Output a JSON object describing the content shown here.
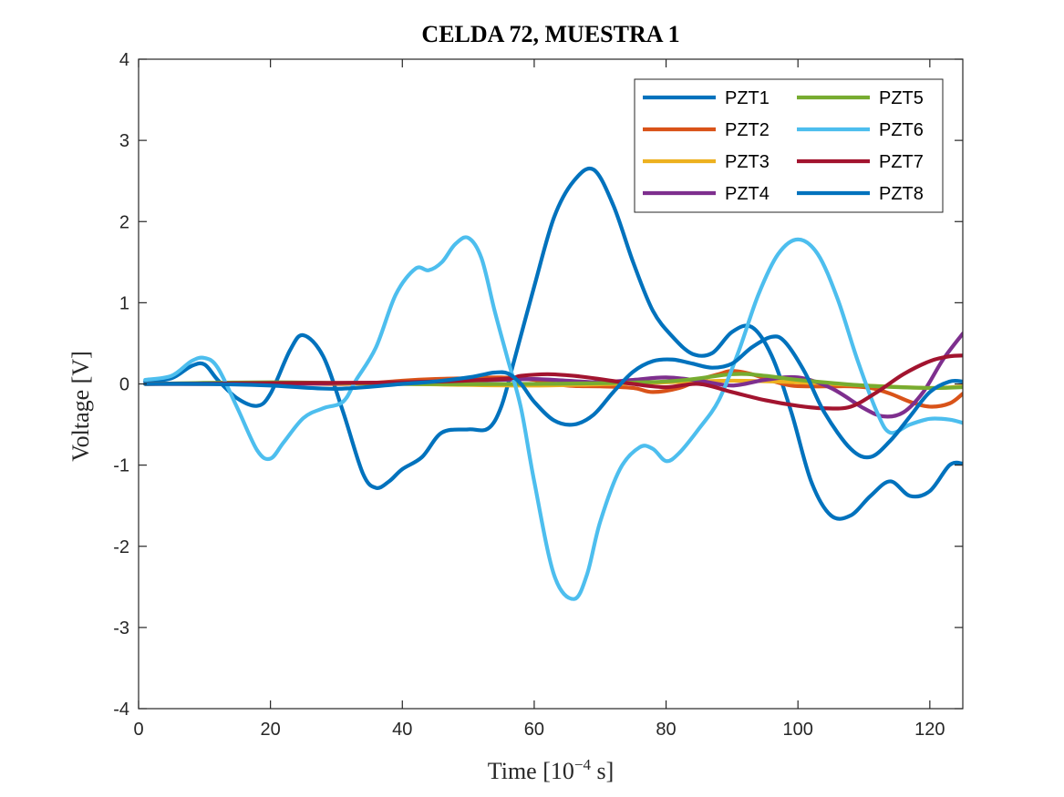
{
  "chart_data": {
    "type": "line",
    "title": "CELDA 72, MUESTRA 1",
    "xlabel": "Time [10",
    "xlabel_exponent": "−4",
    "xlabel_suffix": " s]",
    "ylabel": "Voltage [V]",
    "xlim": [
      0,
      125
    ],
    "ylim": [
      -4,
      4
    ],
    "xticks": [
      0,
      20,
      40,
      60,
      80,
      100,
      120
    ],
    "xtick_labels": [
      "0",
      "20",
      "40",
      "60",
      "80",
      "100",
      "120"
    ],
    "yticks": [
      -4,
      -3,
      -2,
      -1,
      0,
      1,
      2,
      3,
      4
    ],
    "ytick_labels": [
      "-4",
      "-3",
      "-2",
      "-1",
      "0",
      "1",
      "2",
      "3",
      "4"
    ],
    "grid": false,
    "legend_position": "top-right",
    "legend_columns": 2,
    "series": [
      {
        "name": "PZT1",
        "color": "#0072BD",
        "x": [
          1,
          5,
          8,
          10,
          12,
          15,
          18,
          20,
          23,
          25,
          28,
          31,
          34,
          36,
          38,
          40,
          43,
          46,
          50,
          53,
          55,
          57,
          60,
          63,
          66,
          69,
          72,
          75,
          78,
          81,
          84,
          87,
          90,
          93,
          96,
          99,
          102,
          105,
          108,
          111,
          114,
          117,
          120,
          123,
          125
        ],
        "y": [
          0.03,
          0.07,
          0.22,
          0.24,
          0.05,
          -0.18,
          -0.27,
          -0.12,
          0.42,
          0.6,
          0.34,
          -0.34,
          -1.1,
          -1.28,
          -1.2,
          -1.05,
          -0.9,
          -0.6,
          -0.56,
          -0.55,
          -0.28,
          0.3,
          1.2,
          2.05,
          2.5,
          2.64,
          2.2,
          1.5,
          0.9,
          0.58,
          0.37,
          0.38,
          0.64,
          0.7,
          0.35,
          -0.35,
          -1.2,
          -1.62,
          -1.62,
          -1.38,
          -1.2,
          -1.38,
          -1.32,
          -1.0,
          -0.98
        ]
      },
      {
        "name": "PZT2",
        "color": "#D95319",
        "x": [
          1,
          10,
          20,
          30,
          35,
          40,
          45,
          50,
          55,
          60,
          65,
          70,
          75,
          78,
          82,
          85,
          88,
          90,
          93,
          96,
          99,
          102,
          105,
          108,
          111,
          114,
          117,
          120,
          123,
          125
        ],
        "y": [
          0.0,
          0.0,
          0.01,
          0.0,
          0.01,
          0.04,
          0.06,
          0.07,
          0.08,
          0.05,
          -0.02,
          -0.03,
          -0.05,
          -0.1,
          -0.05,
          0.05,
          0.12,
          0.16,
          0.12,
          0.04,
          -0.02,
          -0.03,
          -0.03,
          -0.03,
          -0.05,
          -0.12,
          -0.22,
          -0.28,
          -0.24,
          -0.12
        ]
      },
      {
        "name": "PZT3",
        "color": "#EDB120",
        "x": [
          1,
          20,
          40,
          60,
          80,
          90,
          100,
          110,
          120,
          125
        ],
        "y": [
          0.0,
          0.01,
          0.0,
          -0.02,
          0.02,
          0.04,
          0.02,
          -0.02,
          -0.05,
          -0.03
        ]
      },
      {
        "name": "PZT4",
        "color": "#7E2F8E",
        "x": [
          1,
          20,
          40,
          55,
          60,
          65,
          70,
          75,
          80,
          85,
          90,
          95,
          100,
          105,
          110,
          113,
          116,
          119,
          122,
          125
        ],
        "y": [
          0.0,
          0.0,
          0.02,
          0.05,
          0.06,
          0.04,
          0.02,
          0.05,
          0.08,
          0.04,
          -0.02,
          0.05,
          0.08,
          -0.05,
          -0.3,
          -0.4,
          -0.35,
          -0.1,
          0.3,
          0.62
        ]
      },
      {
        "name": "PZT5",
        "color": "#77AC30",
        "x": [
          1,
          20,
          40,
          60,
          80,
          90,
          95,
          100,
          110,
          120,
          125
        ],
        "y": [
          0.0,
          0.02,
          0.0,
          0.0,
          0.03,
          0.12,
          0.1,
          0.05,
          -0.02,
          -0.05,
          -0.04
        ]
      },
      {
        "name": "PZT6",
        "color": "#4DBEEE",
        "x": [
          1,
          5,
          8,
          10,
          12,
          15,
          18,
          20,
          22,
          25,
          28,
          31,
          33,
          36,
          39,
          42,
          44,
          46,
          48,
          50,
          52,
          54,
          56,
          58,
          60,
          63,
          66,
          68,
          70,
          73,
          76,
          78,
          80,
          82,
          85,
          88,
          91,
          94,
          97,
          100,
          103,
          106,
          109,
          112,
          114,
          117,
          120,
          123,
          125
        ],
        "y": [
          0.05,
          0.1,
          0.28,
          0.32,
          0.2,
          -0.3,
          -0.82,
          -0.92,
          -0.72,
          -0.42,
          -0.3,
          -0.22,
          0.05,
          0.45,
          1.1,
          1.42,
          1.4,
          1.5,
          1.72,
          1.8,
          1.55,
          0.9,
          0.3,
          -0.3,
          -1.2,
          -2.35,
          -2.65,
          -2.35,
          -1.7,
          -1.05,
          -0.78,
          -0.8,
          -0.95,
          -0.85,
          -0.55,
          -0.2,
          0.4,
          1.1,
          1.6,
          1.78,
          1.6,
          1.05,
          0.3,
          -0.35,
          -0.6,
          -0.5,
          -0.43,
          -0.44,
          -0.48
        ]
      },
      {
        "name": "PZT7",
        "color": "#A2142F",
        "x": [
          1,
          20,
          40,
          55,
          58,
          62,
          66,
          70,
          75,
          80,
          85,
          90,
          95,
          100,
          104,
          108,
          112,
          116,
          120,
          123,
          125
        ],
        "y": [
          0.0,
          0.01,
          0.02,
          0.06,
          0.1,
          0.12,
          0.1,
          0.06,
          0.0,
          -0.04,
          0.0,
          -0.1,
          -0.2,
          -0.27,
          -0.3,
          -0.28,
          -0.1,
          0.12,
          0.28,
          0.34,
          0.35
        ]
      },
      {
        "name": "PZT8",
        "color": "#0072BD",
        "x": [
          1,
          10,
          20,
          30,
          40,
          45,
          50,
          52,
          54,
          56,
          58,
          60,
          63,
          66,
          69,
          72,
          75,
          78,
          81,
          84,
          87,
          90,
          93,
          96,
          98,
          101,
          104,
          108,
          111,
          114,
          117,
          120,
          123,
          125
        ],
        "y": [
          0.0,
          0.0,
          -0.02,
          -0.06,
          0.0,
          0.03,
          0.08,
          0.11,
          0.14,
          0.13,
          0.0,
          -0.22,
          -0.45,
          -0.5,
          -0.38,
          -0.1,
          0.15,
          0.28,
          0.3,
          0.25,
          0.2,
          0.25,
          0.45,
          0.58,
          0.52,
          0.15,
          -0.35,
          -0.8,
          -0.9,
          -0.7,
          -0.4,
          -0.1,
          0.03,
          0.03
        ]
      }
    ]
  }
}
